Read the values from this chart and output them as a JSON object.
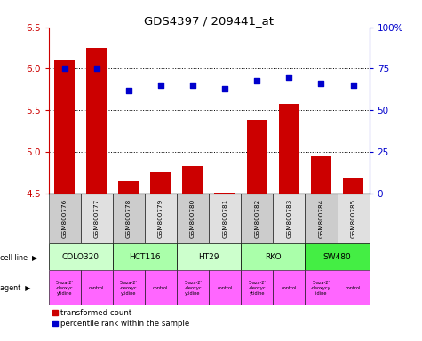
{
  "title": "GDS4397 / 209441_at",
  "samples": [
    "GSM800776",
    "GSM800777",
    "GSM800778",
    "GSM800779",
    "GSM800780",
    "GSM800781",
    "GSM800782",
    "GSM800783",
    "GSM800784",
    "GSM800785"
  ],
  "transformed_count": [
    6.1,
    6.25,
    4.65,
    4.75,
    4.83,
    4.51,
    5.38,
    5.58,
    4.95,
    4.68
  ],
  "percentile_rank": [
    75,
    75,
    62,
    65,
    65,
    63,
    68,
    70,
    66,
    65
  ],
  "bar_color": "#cc0000",
  "dot_color": "#0000cc",
  "ylim_left": [
    4.5,
    6.5
  ],
  "ylim_right": [
    0,
    100
  ],
  "yticks_left": [
    4.5,
    5.0,
    5.5,
    6.0,
    6.5
  ],
  "yticks_right": [
    0,
    25,
    50,
    75,
    100
  ],
  "ytick_labels_right": [
    "0",
    "25",
    "50",
    "75",
    "100%"
  ],
  "cell_line_groups": [
    {
      "name": "COLO320",
      "start": 0,
      "end": 2,
      "color": "#ccffcc"
    },
    {
      "name": "HCT116",
      "start": 2,
      "end": 4,
      "color": "#aaffaa"
    },
    {
      "name": "HT29",
      "start": 4,
      "end": 6,
      "color": "#ccffcc"
    },
    {
      "name": "RKO",
      "start": 6,
      "end": 8,
      "color": "#aaffaa"
    },
    {
      "name": "SW480",
      "start": 8,
      "end": 10,
      "color": "#44ee44"
    }
  ],
  "agent_labels": [
    "5-aza-2'\n-deoxyc\nytidine",
    "control",
    "5-aza-2'\n-deoxyc\nytidine",
    "control",
    "5-aza-2'\n-deoxyc\nytidine",
    "control",
    "5-aza-2'\n-deoxyc\nytidine",
    "control",
    "5-aza-2'\n-deoxycy\ntidine",
    "control"
  ],
  "agent_color": "#ff66ff",
  "sample_bg_even": "#cccccc",
  "sample_bg_odd": "#e0e0e0",
  "background_color": "#ffffff",
  "bar_color_left_axis": "#cc0000",
  "dot_color_right_axis": "#0000cc",
  "grid_yticks": [
    5.0,
    5.5,
    6.0
  ],
  "legend_labels": [
    "transformed count",
    "percentile rank within the sample"
  ]
}
